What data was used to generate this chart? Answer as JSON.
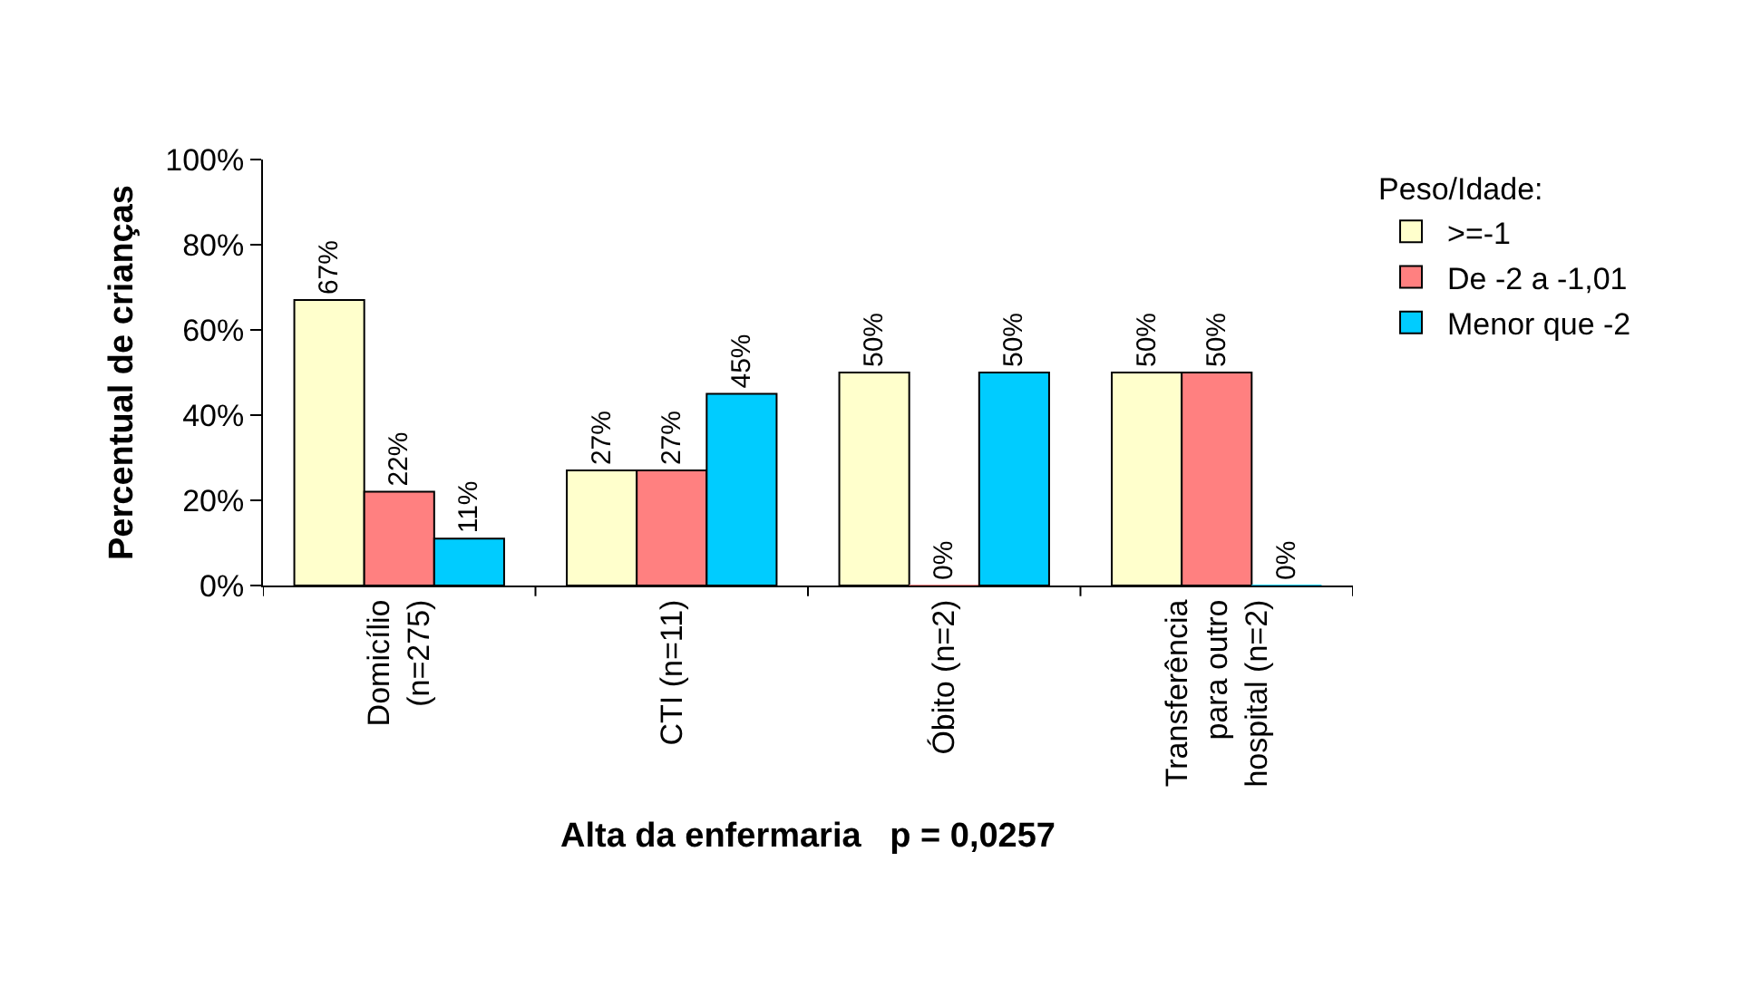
{
  "chart_data": {
    "type": "bar",
    "xlabel": "Alta da enfermaria   p = 0,0257",
    "ylabel": "Percentual de crianças",
    "legend_title": "Peso/Idade:",
    "categories": [
      "Domicílio (n=275)",
      "CTI (n=11)",
      "Óbito (n=2)",
      "Transferência para outro hospital (n=2)"
    ],
    "series": [
      {
        "name": ">=-1",
        "color": "#ffffcc",
        "values": [
          67,
          27,
          50,
          50
        ],
        "value_labels": [
          "67%",
          "27%",
          "50%",
          "50%"
        ]
      },
      {
        "name": "De -2 a -1,01",
        "color": "#ff8080",
        "values": [
          22,
          27,
          0,
          50
        ],
        "value_labels": [
          "22%",
          "27%",
          "0%",
          "50%"
        ]
      },
      {
        "name": "Menor que -2",
        "color": "#00ccff",
        "values": [
          11,
          45,
          50,
          0
        ],
        "value_labels": [
          "11%",
          "45%",
          "50%",
          "0%"
        ]
      }
    ],
    "ylim": [
      0,
      100
    ],
    "yticks": [
      {
        "value": 0,
        "label": "0%"
      },
      {
        "value": 20,
        "label": "20%"
      },
      {
        "value": 40,
        "label": "40%"
      },
      {
        "value": 60,
        "label": "60%"
      },
      {
        "value": 80,
        "label": "80%"
      },
      {
        "value": 100,
        "label": "100%"
      }
    ],
    "grid": false,
    "legend": "right"
  }
}
